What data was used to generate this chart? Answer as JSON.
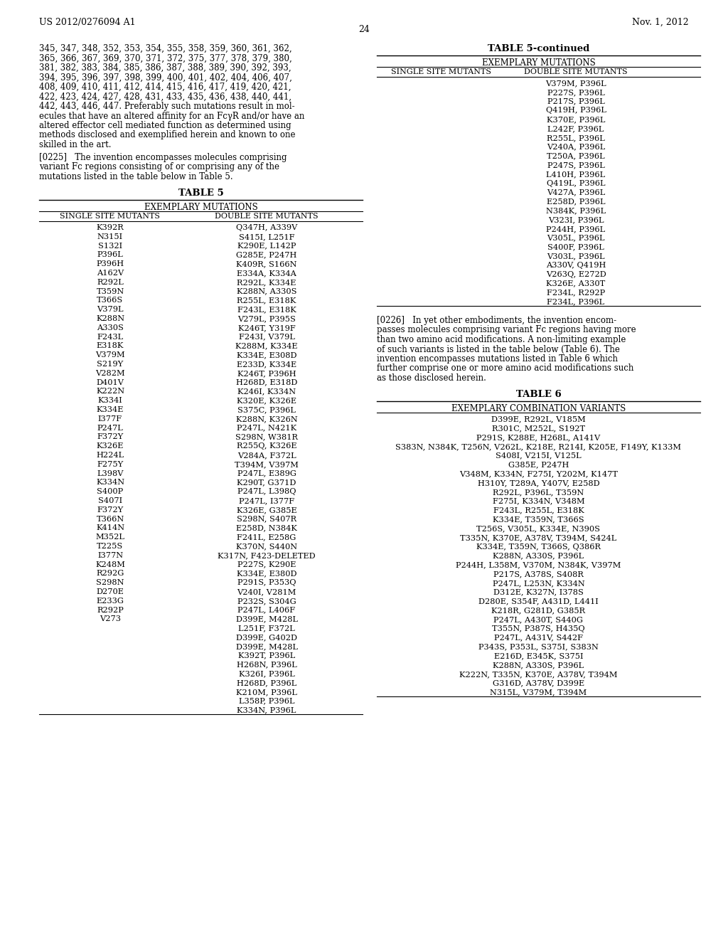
{
  "header_left": "US 2012/0276094 A1",
  "header_right": "Nov. 1, 2012",
  "page_number": "24",
  "background_color": "#ffffff",
  "text_color": "#000000",
  "intro_text": "345, 347, 348, 352, 353, 354, 355, 358, 359, 360, 361, 362,\n365, 366, 367, 369, 370, 371, 372, 375, 377, 378, 379, 380,\n381, 382, 383, 384, 385, 386, 387, 388, 389, 390, 392, 393,\n394, 395, 396, 397, 398, 399, 400, 401, 402, 404, 406, 407,\n408, 409, 410, 411, 412, 414, 415, 416, 417, 419, 420, 421,\n422, 423, 424, 427, 428, 431, 433, 435, 436, 438, 440, 441,\n442, 443, 446, 447. Preferably such mutations result in mol-\necules that have an altered affinity for an FcγR and/or have an\naltered effector cell mediated function as determined using\nmethods disclosed and exemplified herein and known to one\nskilled in the art.",
  "para_0225": "[0225]   The invention encompasses molecules comprising\nvariant Fc regions consisting of or comprising any of the\nmutations listed in the table below in Table 5.",
  "table5_title": "TABLE 5",
  "table5_subtitle": "EXEMPLARY MUTATIONS",
  "table5_col1_header": "SINGLE SITE MUTANTS",
  "table5_col2_header": "DOUBLE SITE MUTANTS",
  "table5_single": [
    "K392R",
    "N315I",
    "S132I",
    "P396L",
    "P396H",
    "A162V",
    "R292L",
    "T359N",
    "T366S",
    "V379L",
    "K288N",
    "A330S",
    "F243L",
    "E318K",
    "V379M",
    "S219Y",
    "V282M",
    "D401V",
    "K222N",
    "K334I",
    "K334E",
    "I377F",
    "P247L",
    "F372Y",
    "K326E",
    "H224L",
    "F275Y",
    "L398V",
    "K334N",
    "S400P",
    "S407I",
    "F372Y",
    "T366N",
    "K414N",
    "M352L",
    "T225S",
    "I377N",
    "K248M",
    "R292G",
    "S298N",
    "D270E",
    "E233G",
    "R292P",
    "V273"
  ],
  "table5_double": [
    "Q347H, A339V",
    "S415I, L251F",
    "K290E, L142P",
    "G285E, P247H",
    "K409R, S166N",
    "E334A, K334A",
    "R292L, K334E",
    "K288N, A330S",
    "R255L, E318K",
    "F243L, E318K",
    "V279L, P395S",
    "K246T, Y319F",
    "F243I, V379L",
    "K288M, K334E",
    "K334E, E308D",
    "E233D, K334E",
    "K246T, P396H",
    "H268D, E318D",
    "K246I, K334N",
    "K320E, K326E",
    "S375C, P396L",
    "K288N, K326N",
    "P247L, N421K",
    "S298N, W381R",
    "R255Q, K326E",
    "V284A, F372L",
    "T394M, V397M",
    "P247L, E389G",
    "K290T, G371D",
    "P247L, L398Q",
    "P247L, I377F",
    "K326E, G385E",
    "S298N, S407R",
    "E258D, N384K",
    "F241L, E258G",
    "K370N, S440N",
    "K317N, F423-DELETED",
    "P227S, K290E",
    "K334E, E380D",
    "P291S, P353Q",
    "V240I, V281M",
    "P232S, S304G",
    "P247L, L406F",
    "D399E, M428L",
    "L251F, F372L",
    "D399E, G402D",
    "D399E, M428L",
    "K392T, P396L",
    "H268N, P396L",
    "K326I, P396L",
    "H268D, P396L",
    "K210M, P396L",
    "L358P, P396L",
    "K334N, P396L"
  ],
  "table5_cont_double": [
    "V379M, P396L",
    "P227S, P396L",
    "P217S, P396L",
    "Q419H, P396L",
    "K370E, P396L",
    "L242F, P396L",
    "R255L, P396L",
    "V240A, P396L",
    "T250A, P396L",
    "P247S, P396L",
    "L410H, P396L",
    "Q419L, P396L",
    "V427A, P396L",
    "E258D, P396L",
    "N384K, P396L",
    "V323I, P396L",
    "P244H, P396L",
    "V305L, P396L",
    "S400F, P396L",
    "V303L, P396L",
    "A330V, Q419H",
    "V263Q, E272D",
    "K326E, A330T",
    "F234L, R292P",
    "F234L, P396L"
  ],
  "para_0226": "[0226]   In yet other embodiments, the invention encom-\npasses molecules comprising variant Fc regions having more\nthan two amino acid modifications. A non-limiting example\nof such variants is listed in the table below (Table 6). The\ninvention encompasses mutations listed in Table 6 which\nfurther comprise one or more amino acid modifications such\nas those disclosed herein.",
  "table6_title": "TABLE 6",
  "table6_subtitle": "EXEMPLARY COMBINATION VARIANTS",
  "table6_data": [
    "D399E, R292L, V185M",
    "R301C, M252L, S192T",
    "P291S, K288E, H268L, A141V",
    "S383N, N384K, T256N, V262L, K218E, R214I, K205E, F149Y, K133M",
    "S408I, V215I, V125L",
    "G385E, P247H",
    "V348M, K334N, F275I, Y202M, K147T",
    "H310Y, T289A, Y407V, E258D",
    "R292L, P396L, T359N",
    "F275I, K334N, V348M",
    "F243L, R255L, E318K",
    "K334E, T359N, T366S",
    "T256S, V305L, K334E, N390S",
    "T335N, K370E, A378V, T394M, S424L",
    "K334E, T359N, T366S, Q386R",
    "K288N, A330S, P396L",
    "P244H, L358M, V370M, N384K, V397M",
    "P217S, A378S, S408R",
    "P247L, L253N, K334N",
    "D312E, K327N, I378S",
    "D280E, S354F, A431D, L441I",
    "K218R, G281D, G385R",
    "P247L, A430T, S440G",
    "T355N, P387S, H435Q",
    "P247L, A431V, S442F",
    "P343S, P353L, S375I, S383N",
    "E216D, E345K, S375I",
    "K288N, A330S, P396L",
    "K222N, T335N, K370E, A378V, T394M",
    "G316D, A378V, D399E",
    "N315L, V379M, T394M"
  ]
}
